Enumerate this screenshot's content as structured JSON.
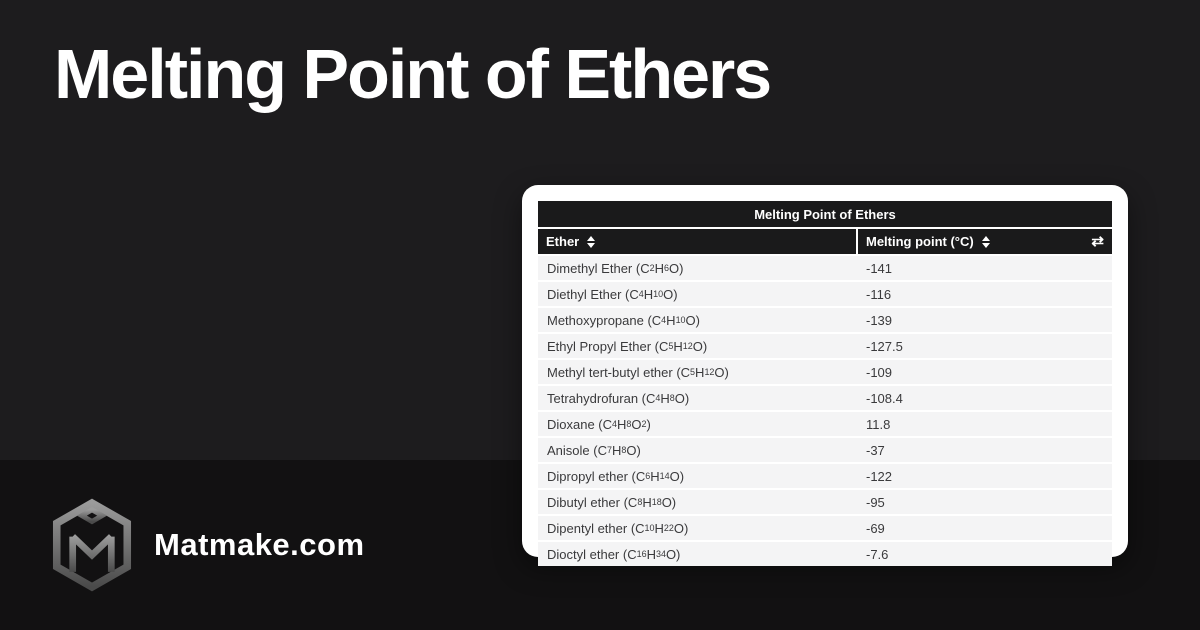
{
  "page": {
    "heading": "Melting Point of Ethers"
  },
  "brand": {
    "name": "Matmake.com"
  },
  "colors": {
    "background_top": "#1D1C1E",
    "background_bottom": "#121112",
    "card_bg": "#FFFFFF",
    "table_header_bg": "#1A1A1B",
    "table_header_text": "#FFFFFF",
    "row_bg": "#F4F4F5",
    "row_text": "#3A3A3C"
  },
  "table": {
    "title": "Melting Point of Ethers",
    "columns": [
      {
        "label": "Ether",
        "sort_icon": "sort-arrows-icon"
      },
      {
        "label": "Melting point (°C)",
        "sort_icon": "sort-arrows-icon",
        "extra_icon": "swap-columns-icon"
      }
    ],
    "rows": [
      {
        "name": "Dimethyl Ether",
        "formula": "C2H6O",
        "melting_point": "-141"
      },
      {
        "name": "Diethyl Ether",
        "formula": "C4H10O",
        "melting_point": "-116"
      },
      {
        "name": "Methoxypropane",
        "formula": "C4H10O",
        "melting_point": "-139"
      },
      {
        "name": "Ethyl Propyl Ether",
        "formula": "C5H12O",
        "melting_point": "-127.5"
      },
      {
        "name": "Methyl tert-butyl ether",
        "formula": "C5H12O",
        "melting_point": "-109"
      },
      {
        "name": "Tetrahydrofuran",
        "formula": "C4H8O",
        "melting_point": "-108.4"
      },
      {
        "name": "Dioxane",
        "formula": "C4H8O2",
        "melting_point": "11.8"
      },
      {
        "name": "Anisole",
        "formula": "C7H8O",
        "melting_point": "-37"
      },
      {
        "name": "Dipropyl ether",
        "formula": "C6H14O",
        "melting_point": "-122"
      },
      {
        "name": "Dibutyl ether",
        "formula": "C8H18O",
        "melting_point": "-95"
      },
      {
        "name": "Dipentyl ether",
        "formula": "C10H22O",
        "melting_point": "-69"
      },
      {
        "name": "Dioctyl ether",
        "formula": "C16H34O",
        "melting_point": "-7.6"
      }
    ]
  },
  "chart_data": {
    "type": "table",
    "title": "Melting Point of Ethers",
    "columns": [
      "Ether",
      "Melting point (°C)"
    ],
    "categories": [
      "Dimethyl Ether (C2H6O)",
      "Diethyl Ether (C4H10O)",
      "Methoxypropane (C4H10O)",
      "Ethyl Propyl Ether (C5H12O)",
      "Methyl tert-butyl ether (C5H12O)",
      "Tetrahydrofuran (C4H8O)",
      "Dioxane (C4H8O2)",
      "Anisole (C7H8O)",
      "Dipropyl ether (C6H14O)",
      "Dibutyl ether (C8H18O)",
      "Dipentyl ether (C10H22O)",
      "Dioctyl ether (C16H34O)"
    ],
    "values": [
      -141,
      -116,
      -139,
      -127.5,
      -109,
      -108.4,
      11.8,
      -37,
      -122,
      -95,
      -69,
      -7.6
    ]
  }
}
